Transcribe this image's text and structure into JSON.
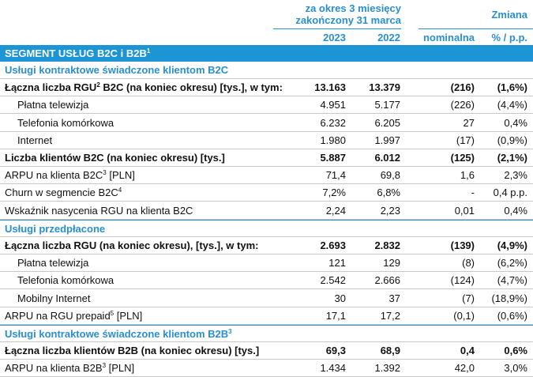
{
  "header": {
    "period": [
      "za okres 3 miesięcy",
      "zakończony 31 marca"
    ],
    "change": "Zmiana",
    "columns": [
      "2023",
      "2022",
      "nominalna",
      "% / p.p."
    ]
  },
  "segment": {
    "label": "SEGMENT USŁUG B2C i B2B",
    "sup": "1"
  },
  "rows": [
    {
      "kind": "section",
      "label": "Usługi kontraktowe świadczone klientom B2C"
    },
    {
      "kind": "bold",
      "label": "Łączna liczba RGU",
      "sup": "2",
      "label_after": " B2C (na koniec okresu) [tys.], w tym:",
      "values": [
        "13.163",
        "13.379",
        "(216)",
        "(1,6%)"
      ]
    },
    {
      "kind": "indent",
      "label": "Płatna telewizja",
      "values": [
        "4.951",
        "5.177",
        "(226)",
        "(4,4%)"
      ]
    },
    {
      "kind": "indent",
      "label": "Telefonia komórkowa",
      "values": [
        "6.232",
        "6.205",
        "27",
        "0,4%"
      ]
    },
    {
      "kind": "indent",
      "label": "Internet",
      "values": [
        "1.980",
        "1.997",
        "(17)",
        "(0,9%)"
      ]
    },
    {
      "kind": "bold",
      "label": "Liczba klientów B2C (na koniec okresu) [tys.]",
      "values": [
        "5.887",
        "6.012",
        "(125)",
        "(2,1%)"
      ]
    },
    {
      "kind": "plain",
      "label": "ARPU na klienta B2C",
      "sup": "3",
      "label_after": " [PLN]",
      "values": [
        "71,4",
        "69,8",
        "1,6",
        "2,3%"
      ]
    },
    {
      "kind": "plain",
      "label": "Churn w segmencie B2C",
      "sup": "4",
      "values": [
        "7,2%",
        "6,8%",
        "-",
        "0,4 p.p."
      ]
    },
    {
      "kind": "plain",
      "label": "Wskaźnik nasycenia RGU na klienta B2C",
      "values": [
        "2,24",
        "2,23",
        "0,01",
        "0,4%"
      ]
    },
    {
      "kind": "section",
      "label": "Usługi przedpłacone"
    },
    {
      "kind": "bold",
      "label": "Łączna liczba RGU (na koniec okresu), [tys.], w tym:",
      "values": [
        "2.693",
        "2.832",
        "(139)",
        "(4,9%)"
      ]
    },
    {
      "kind": "indent",
      "label": "Płatna telewizja",
      "values": [
        "121",
        "129",
        "(8)",
        "(6,2%)"
      ]
    },
    {
      "kind": "indent",
      "label": "Telefonia komórkowa",
      "values": [
        "2.542",
        "2.666",
        "(124)",
        "(4,7%)"
      ]
    },
    {
      "kind": "indent",
      "label": "Mobilny Internet",
      "values": [
        "30",
        "37",
        "(7)",
        "(18,9%)"
      ]
    },
    {
      "kind": "plain",
      "label": "ARPU na RGU prepaid",
      "sup": "5",
      "label_after": " [PLN]",
      "values": [
        "17,1",
        "17,2",
        "(0,1)",
        "(0,6%)"
      ]
    },
    {
      "kind": "section",
      "label": "Usługi kontraktowe świadczone klientom B2B",
      "sup": "3"
    },
    {
      "kind": "bold",
      "label": "Łączna liczba klientów B2B (na koniec okresu) [tys.]",
      "values": [
        "69,3",
        "68,9",
        "0,4",
        "0,6%"
      ]
    },
    {
      "kind": "plain",
      "label": "ARPU na klienta B2B",
      "sup": "3",
      "label_after": " [PLN]",
      "values": [
        "1.434",
        "1.392",
        "42,0",
        "3,0%"
      ]
    }
  ]
}
